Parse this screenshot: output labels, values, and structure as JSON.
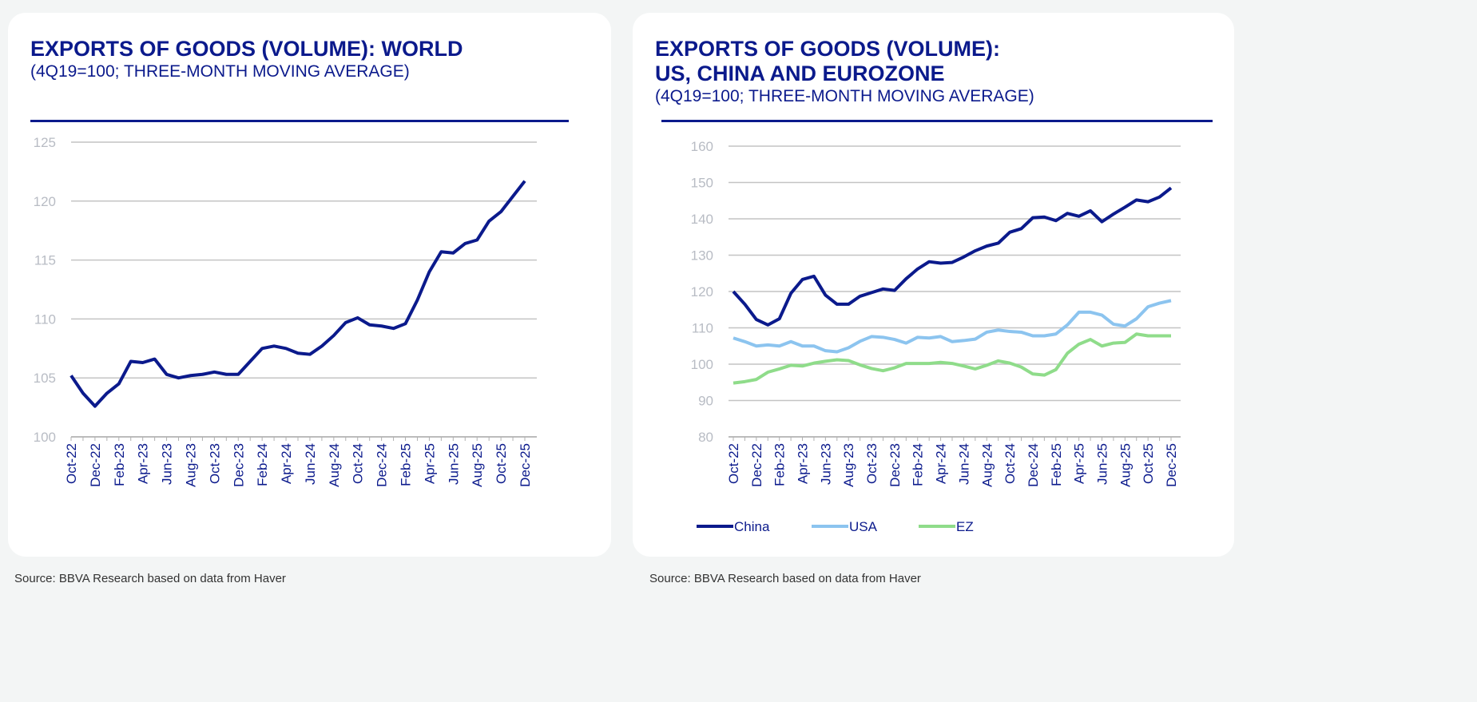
{
  "charts": [
    {
      "title": "EXPORTS OF GOODS (VOLUME): WORLD",
      "subtitle": "(4Q19=100; THREE-MONTH MOVING AVERAGE)",
      "source": "Source: BBVA Research based on data from Haver"
    },
    {
      "title_line1": "EXPORTS OF GOODS (VOLUME):",
      "title_line2": "US, CHINA AND EUROZONE",
      "subtitle": "(4Q19=100; THREE-MONTH MOVING AVERAGE)",
      "source": "Source: BBVA Research based on data from Haver"
    }
  ],
  "chart_data": [
    {
      "type": "line",
      "title": "EXPORTS OF GOODS (VOLUME): WORLD",
      "ylim": [
        100,
        125
      ],
      "yticks": [
        100,
        105,
        110,
        115,
        120,
        125
      ],
      "grid": true,
      "x_start": "Oct-22",
      "x_end": "Dec-25",
      "x_frequency": "monthly",
      "xtick_labels": [
        "Oct-22",
        "Dec-22",
        "Feb-23",
        "Apr-23",
        "Jun-23",
        "Aug-23",
        "Oct-23",
        "Dec-23",
        "Feb-24",
        "Apr-24",
        "Jun-24",
        "Aug-24",
        "Oct-24",
        "Dec-24",
        "Feb-25",
        "Apr-25",
        "Jun-25",
        "Aug-25",
        "Oct-25",
        "Dec-25"
      ],
      "series": [
        {
          "color": "#0b1a8c",
          "values": [
            105.2,
            103.7,
            102.6,
            103.7,
            104.5,
            106.4,
            106.3,
            106.6,
            105.3,
            105.0,
            105.2,
            105.3,
            105.5,
            105.3,
            105.3,
            106.4,
            107.5,
            107.7,
            107.5,
            107.1,
            107.0,
            107.7,
            108.6,
            109.7,
            110.1,
            109.5,
            109.4,
            109.2,
            109.6,
            111.6,
            114.0,
            115.7,
            115.6,
            116.4,
            116.7,
            118.3,
            119.1,
            120.4,
            121.7
          ]
        }
      ]
    },
    {
      "type": "line",
      "title": "EXPORTS OF GOODS (VOLUME): US, CHINA AND EUROZONE",
      "ylim": [
        80,
        160
      ],
      "yticks": [
        80,
        90,
        100,
        110,
        120,
        130,
        140,
        150,
        160
      ],
      "grid": true,
      "legend": "bottom",
      "x_start": "Oct-22",
      "x_end": "Dec-25",
      "x_frequency": "monthly",
      "xtick_labels": [
        "Oct-22",
        "Dec-22",
        "Feb-23",
        "Apr-23",
        "Jun-23",
        "Aug-23",
        "Oct-23",
        "Dec-23",
        "Feb-24",
        "Apr-24",
        "Jun-24",
        "Aug-24",
        "Oct-24",
        "Dec-24",
        "Feb-25",
        "Apr-25",
        "Jun-25",
        "Aug-25",
        "Oct-25",
        "Dec-25"
      ],
      "series": [
        {
          "name": "China",
          "color": "#0b1a8c",
          "values": [
            120,
            116.5,
            112.3,
            110.8,
            112.5,
            119.5,
            123.3,
            124.2,
            119,
            116.5,
            116.5,
            118.7,
            119.7,
            120.7,
            120.3,
            123.5,
            126.2,
            128.2,
            127.8,
            128,
            129.5,
            131.2,
            132.5,
            133.3,
            136.3,
            137.3,
            140.3,
            140.5,
            139.5,
            141.5,
            140.7,
            142.2,
            139.2,
            141.3,
            143.2,
            145.2,
            144.7,
            146,
            148.5
          ]
        },
        {
          "name": "USA",
          "color": "#8cc4ef",
          "values": [
            107.2,
            106.2,
            105,
            105.3,
            105,
            106.2,
            105,
            105,
            103.7,
            103.4,
            104.5,
            106.3,
            107.6,
            107.4,
            106.8,
            105.8,
            107.4,
            107.2,
            107.6,
            106.2,
            106.5,
            106.9,
            108.8,
            109.4,
            109,
            108.8,
            107.8,
            107.8,
            108.3,
            110.8,
            114.3,
            114.3,
            113.5,
            111,
            110.5,
            112.5,
            115.8,
            116.8,
            117.5
          ]
        },
        {
          "name": "EZ",
          "color": "#8fdc8a",
          "values": [
            94.8,
            95.2,
            95.8,
            97.8,
            98.7,
            99.7,
            99.5,
            100.3,
            100.8,
            101.2,
            101,
            99.8,
            98.8,
            98.2,
            99,
            100.2,
            100.2,
            100.2,
            100.5,
            100.2,
            99.5,
            98.7,
            99.7,
            100.9,
            100.3,
            99.2,
            97.3,
            97.0,
            98.5,
            103,
            105.5,
            106.8,
            105,
            105.8,
            106,
            108.3,
            107.8,
            107.8,
            107.8
          ]
        }
      ]
    }
  ]
}
